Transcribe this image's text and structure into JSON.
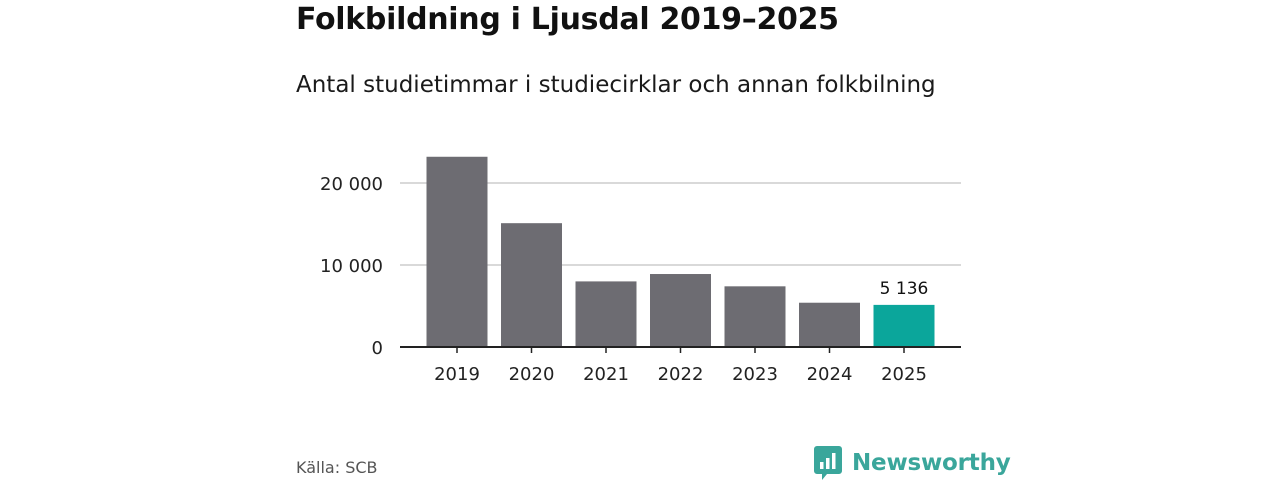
{
  "header": {
    "title": "Folkbildning i Ljusdal 2019–2025",
    "subtitle": "Antal studietimmar i studiecirklar och annan folkbilning"
  },
  "footer": {
    "source": "Källa: SCB",
    "brand": "Newsworthy"
  },
  "colors": {
    "bar": "#6d6c72",
    "highlight": "#0ba69b",
    "grid": "#d9d9d9",
    "axis": "#222222",
    "brand": "#3aa69b"
  },
  "chart_data": {
    "type": "bar",
    "title": "Folkbildning i Ljusdal 2019–2025",
    "subtitle": "Antal studietimmar i studiecirklar och annan folkbilning",
    "xlabel": "",
    "ylabel": "",
    "categories": [
      "2019",
      "2020",
      "2021",
      "2022",
      "2023",
      "2024",
      "2025"
    ],
    "values": [
      23200,
      15100,
      8000,
      8900,
      7400,
      5400,
      5136
    ],
    "highlight_index": 6,
    "data_labels": [
      {
        "index": 6,
        "text": "5 136"
      }
    ],
    "yticks": [
      0,
      10000,
      20000
    ],
    "ytick_labels": [
      "0",
      "10 000",
      "20 000"
    ],
    "ylim": [
      0,
      25000
    ],
    "grid": true
  }
}
